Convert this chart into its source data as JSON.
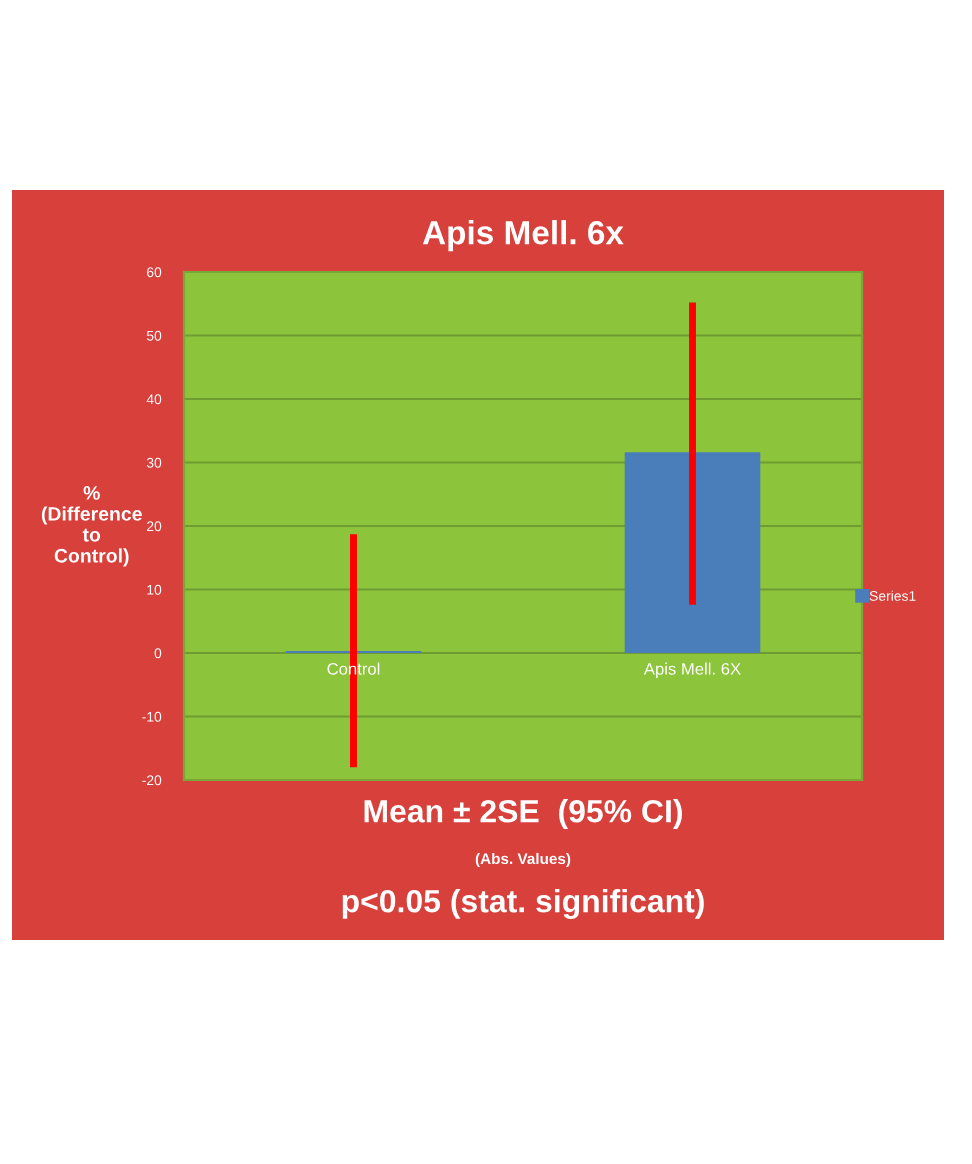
{
  "chart_data": {
    "type": "bar",
    "title": "Apis Mell. 6x",
    "ylabel": "%\n(Difference\nto\nControl)",
    "categories": [
      "Control",
      "Apis Mell. 6X"
    ],
    "series": [
      {
        "name": "Series1",
        "color": "#4a7ebb",
        "values": [
          0.3,
          31.6
        ],
        "errors": [
          [
            -18.0,
            18.7
          ],
          [
            7.6,
            55.2
          ]
        ]
      }
    ],
    "ylim": [
      -20,
      60
    ],
    "yticks": [
      -20,
      -10,
      0,
      10,
      20,
      30,
      40,
      50,
      60
    ],
    "grid": "y",
    "legend": "right",
    "annotations": [
      "Mean ± 2SE  (95% CI)",
      "(Abs. Values)",
      "p<0.05 (stat. significant)"
    ]
  }
}
